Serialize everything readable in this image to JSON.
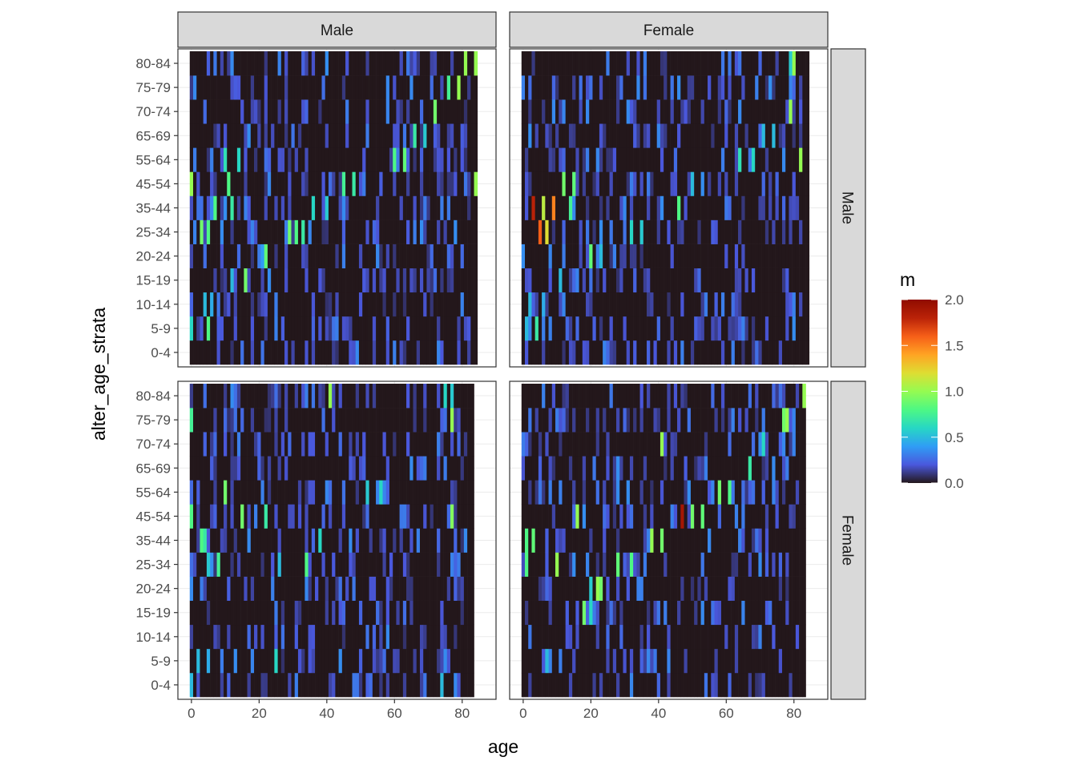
{
  "chart_data": {
    "type": "heatmap",
    "xlabel": "age",
    "ylabel": "alter_age_strata",
    "x_ticks": [
      0,
      20,
      40,
      60,
      80
    ],
    "xlim": [
      -4,
      90
    ],
    "y_categories": [
      "0-4",
      "5-9",
      "10-14",
      "15-19",
      "20-24",
      "25-34",
      "35-44",
      "45-54",
      "55-64",
      "65-69",
      "70-74",
      "75-79",
      "80-84"
    ],
    "facet_columns": [
      "Male",
      "Female"
    ],
    "facet_rows": [
      "Male",
      "Female"
    ],
    "fill_variable": "m",
    "fill_scale": {
      "name": "turbo",
      "limits": [
        0,
        2
      ],
      "breaks": [
        0,
        0.5,
        1,
        1.5,
        2
      ],
      "break_labels": [
        "0.0",
        "0.5",
        "1.0",
        "1.5",
        "2.0"
      ],
      "colors": [
        "#23171b",
        "#4a58dd",
        "#2f9df5",
        "#27d7c4",
        "#4df884",
        "#95fb51",
        "#dedd32",
        "#ffa423",
        "#f65f18",
        "#ba2208",
        "#900c00"
      ]
    },
    "panels": [
      {
        "column": "Male",
        "row": "Male",
        "ages_max": 84,
        "hot": [
          {
            "x": 0,
            "cat": "5-9",
            "v": 0.6
          },
          {
            "x": 5,
            "cat": "5-9",
            "v": 0.8
          },
          {
            "x": 4,
            "cat": "10-14",
            "v": 0.5
          },
          {
            "x": 6,
            "cat": "10-14",
            "v": 0.45
          },
          {
            "x": 12,
            "cat": "15-19",
            "v": 0.5
          },
          {
            "x": 16,
            "cat": "15-19",
            "v": 0.9
          },
          {
            "x": 21,
            "cat": "20-24",
            "v": 0.4
          },
          {
            "x": 22,
            "cat": "20-24",
            "v": 0.85
          },
          {
            "x": 3,
            "cat": "25-34",
            "v": 0.9
          },
          {
            "x": 5,
            "cat": "25-34",
            "v": 0.8
          },
          {
            "x": 29,
            "cat": "25-34",
            "v": 0.9
          },
          {
            "x": 31,
            "cat": "25-34",
            "v": 0.8
          },
          {
            "x": 33,
            "cat": "25-34",
            "v": 0.7
          },
          {
            "x": 7,
            "cat": "35-44",
            "v": 0.8
          },
          {
            "x": 12,
            "cat": "35-44",
            "v": 0.7
          },
          {
            "x": 36,
            "cat": "35-44",
            "v": 0.6
          },
          {
            "x": 40,
            "cat": "35-44",
            "v": 0.55
          },
          {
            "x": 0,
            "cat": "45-54",
            "v": 1.0
          },
          {
            "x": 11,
            "cat": "45-54",
            "v": 0.8
          },
          {
            "x": 45,
            "cat": "45-54",
            "v": 0.75
          },
          {
            "x": 48,
            "cat": "45-54",
            "v": 0.7
          },
          {
            "x": 84,
            "cat": "45-54",
            "v": 1.0
          },
          {
            "x": 10,
            "cat": "55-64",
            "v": 0.65
          },
          {
            "x": 14,
            "cat": "55-64",
            "v": 0.6
          },
          {
            "x": 60,
            "cat": "55-64",
            "v": 0.8
          },
          {
            "x": 63,
            "cat": "55-64",
            "v": 0.85
          },
          {
            "x": 66,
            "cat": "65-69",
            "v": 0.7
          },
          {
            "x": 69,
            "cat": "65-69",
            "v": 0.55
          },
          {
            "x": 72,
            "cat": "70-74",
            "v": 0.9
          },
          {
            "x": 76,
            "cat": "75-79",
            "v": 0.75
          },
          {
            "x": 79,
            "cat": "75-79",
            "v": 1.0
          },
          {
            "x": 81,
            "cat": "80-84",
            "v": 1.0
          },
          {
            "x": 84,
            "cat": "80-84",
            "v": 1.0
          }
        ]
      },
      {
        "column": "Female",
        "row": "Male",
        "ages_max": 84,
        "hot": [
          {
            "x": 1,
            "cat": "5-9",
            "v": 0.5
          },
          {
            "x": 4,
            "cat": "5-9",
            "v": 0.7
          },
          {
            "x": 2,
            "cat": "10-14",
            "v": 0.5
          },
          {
            "x": 6,
            "cat": "10-14",
            "v": 0.45
          },
          {
            "x": 11,
            "cat": "15-19",
            "v": 0.5
          },
          {
            "x": 20,
            "cat": "20-24",
            "v": 0.85
          },
          {
            "x": 23,
            "cat": "20-24",
            "v": 0.5
          },
          {
            "x": 5,
            "cat": "25-34",
            "v": 1.6
          },
          {
            "x": 7,
            "cat": "25-34",
            "v": 1.2
          },
          {
            "x": 32,
            "cat": "25-34",
            "v": 0.6
          },
          {
            "x": 35,
            "cat": "25-34",
            "v": 0.55
          },
          {
            "x": 3,
            "cat": "35-44",
            "v": 1.8
          },
          {
            "x": 6,
            "cat": "35-44",
            "v": 1.1
          },
          {
            "x": 9,
            "cat": "35-44",
            "v": 1.5
          },
          {
            "x": 14,
            "cat": "35-44",
            "v": 0.75
          },
          {
            "x": 46,
            "cat": "35-44",
            "v": 0.8
          },
          {
            "x": 12,
            "cat": "45-54",
            "v": 0.9
          },
          {
            "x": 15,
            "cat": "45-54",
            "v": 0.85
          },
          {
            "x": 50,
            "cat": "45-54",
            "v": 0.5
          },
          {
            "x": 64,
            "cat": "55-64",
            "v": 0.65
          },
          {
            "x": 68,
            "cat": "55-64",
            "v": 0.6
          },
          {
            "x": 82,
            "cat": "55-64",
            "v": 1.0
          },
          {
            "x": 71,
            "cat": "65-69",
            "v": 0.5
          },
          {
            "x": 74,
            "cat": "65-69",
            "v": 0.5
          },
          {
            "x": 79,
            "cat": "70-74",
            "v": 1.0
          },
          {
            "x": 79,
            "cat": "80-84",
            "v": 0.55
          },
          {
            "x": 80,
            "cat": "80-84",
            "v": 1.0
          }
        ]
      },
      {
        "column": "Male",
        "row": "Female",
        "ages_max": 83,
        "hot": [
          {
            "x": 0,
            "cat": "0-4",
            "v": 0.5
          },
          {
            "x": 74,
            "cat": "0-4",
            "v": 0.5
          },
          {
            "x": 2,
            "cat": "5-9",
            "v": 0.5
          },
          {
            "x": 5,
            "cat": "5-9",
            "v": 0.45
          },
          {
            "x": 25,
            "cat": "5-9",
            "v": 0.6
          },
          {
            "x": 5,
            "cat": "25-34",
            "v": 0.55
          },
          {
            "x": 8,
            "cat": "25-34",
            "v": 0.75
          },
          {
            "x": 26,
            "cat": "25-34",
            "v": 0.5
          },
          {
            "x": 34,
            "cat": "25-34",
            "v": 0.8
          },
          {
            "x": 3,
            "cat": "35-44",
            "v": 0.8
          },
          {
            "x": 4,
            "cat": "35-44",
            "v": 0.7
          },
          {
            "x": 38,
            "cat": "35-44",
            "v": 0.6
          },
          {
            "x": 0,
            "cat": "45-54",
            "v": 0.8
          },
          {
            "x": 15,
            "cat": "45-54",
            "v": 0.9
          },
          {
            "x": 22,
            "cat": "45-54",
            "v": 0.7
          },
          {
            "x": 77,
            "cat": "45-54",
            "v": 0.95
          },
          {
            "x": 10,
            "cat": "55-64",
            "v": 0.9
          },
          {
            "x": 52,
            "cat": "55-64",
            "v": 0.55
          },
          {
            "x": 56,
            "cat": "55-64",
            "v": 0.6
          },
          {
            "x": 0,
            "cat": "75-79",
            "v": 0.75
          },
          {
            "x": 77,
            "cat": "75-79",
            "v": 1.0
          },
          {
            "x": 41,
            "cat": "80-84",
            "v": 1.0
          },
          {
            "x": 75,
            "cat": "80-84",
            "v": 0.6
          },
          {
            "x": 77,
            "cat": "80-84",
            "v": 0.55
          }
        ]
      },
      {
        "column": "Female",
        "row": "Female",
        "ages_max": 83,
        "hot": [
          {
            "x": 7,
            "cat": "5-9",
            "v": 0.5
          },
          {
            "x": 18,
            "cat": "15-19",
            "v": 0.9
          },
          {
            "x": 20,
            "cat": "15-19",
            "v": 0.6
          },
          {
            "x": 22,
            "cat": "20-24",
            "v": 1.0
          },
          {
            "x": 23,
            "cat": "20-24",
            "v": 0.9
          },
          {
            "x": 20,
            "cat": "20-24",
            "v": 0.55
          },
          {
            "x": 1,
            "cat": "25-34",
            "v": 0.8
          },
          {
            "x": 10,
            "cat": "25-34",
            "v": 1.0
          },
          {
            "x": 28,
            "cat": "25-34",
            "v": 0.85
          },
          {
            "x": 32,
            "cat": "25-34",
            "v": 0.8
          },
          {
            "x": 1,
            "cat": "35-44",
            "v": 0.8
          },
          {
            "x": 3,
            "cat": "35-44",
            "v": 0.85
          },
          {
            "x": 38,
            "cat": "35-44",
            "v": 1.0
          },
          {
            "x": 41,
            "cat": "35-44",
            "v": 0.9
          },
          {
            "x": 16,
            "cat": "45-54",
            "v": 1.0
          },
          {
            "x": 47,
            "cat": "45-54",
            "v": 1.9
          },
          {
            "x": 50,
            "cat": "45-54",
            "v": 0.9
          },
          {
            "x": 53,
            "cat": "45-54",
            "v": 0.85
          },
          {
            "x": 58,
            "cat": "55-64",
            "v": 0.9
          },
          {
            "x": 61,
            "cat": "55-64",
            "v": 0.8
          },
          {
            "x": 67,
            "cat": "65-69",
            "v": 0.7
          },
          {
            "x": 41,
            "cat": "70-74",
            "v": 1.0
          },
          {
            "x": 71,
            "cat": "70-74",
            "v": 0.6
          },
          {
            "x": 77,
            "cat": "75-79",
            "v": 0.9
          },
          {
            "x": 78,
            "cat": "75-79",
            "v": 1.0
          },
          {
            "x": 83,
            "cat": "80-84",
            "v": 1.0
          }
        ]
      }
    ]
  }
}
